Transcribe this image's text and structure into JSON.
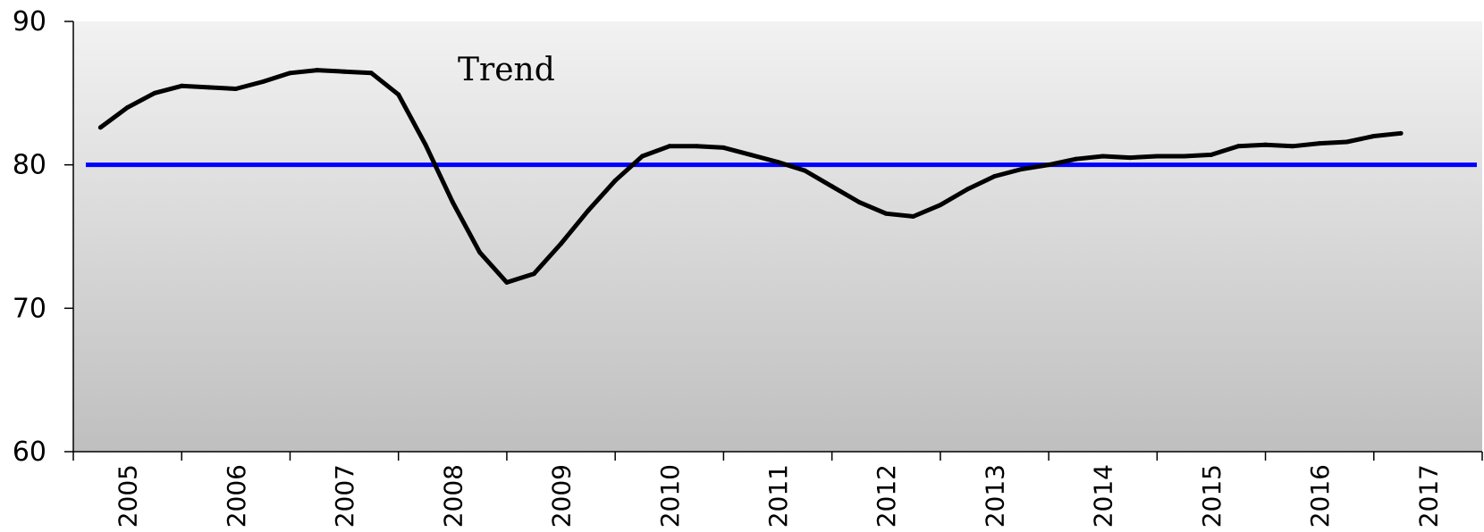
{
  "chart_data": {
    "type": "line",
    "title": "",
    "xlabel": "",
    "ylabel": "",
    "ylim": [
      60,
      90
    ],
    "yticks": [
      60,
      70,
      80,
      90
    ],
    "xticks": [
      "2005",
      "2006",
      "2007",
      "2008",
      "2009",
      "2010",
      "2011",
      "2012",
      "2013",
      "2014",
      "2015",
      "2016",
      "2017"
    ],
    "x_range": [
      2005,
      2018
    ],
    "grid": false,
    "legend": "none",
    "annotation": "Trend",
    "reference_line": {
      "y": 80,
      "color": "#0000ff"
    },
    "series": [
      {
        "color": "#000000",
        "x": [
          2005.25,
          2005.5,
          2005.75,
          2006.0,
          2006.25,
          2006.5,
          2006.75,
          2007.0,
          2007.25,
          2007.5,
          2007.75,
          2008.0,
          2008.25,
          2008.5,
          2008.75,
          2009.0,
          2009.25,
          2009.5,
          2009.75,
          2010.0,
          2010.25,
          2010.5,
          2010.75,
          2011.0,
          2011.25,
          2011.5,
          2011.75,
          2012.0,
          2012.25,
          2012.5,
          2012.75,
          2013.0,
          2013.25,
          2013.5,
          2013.75,
          2014.0,
          2014.25,
          2014.5,
          2014.75,
          2015.0,
          2015.25,
          2015.5,
          2015.75,
          2016.0,
          2016.25,
          2016.5,
          2016.75,
          2017.0,
          2017.25
        ],
        "values": [
          82.6,
          84.0,
          85.0,
          85.5,
          85.4,
          85.3,
          85.8,
          86.4,
          86.6,
          86.5,
          86.4,
          84.9,
          81.4,
          77.4,
          73.9,
          71.8,
          72.4,
          74.5,
          76.8,
          78.9,
          80.6,
          81.3,
          81.3,
          81.2,
          80.7,
          80.2,
          79.6,
          78.5,
          77.4,
          76.6,
          76.4,
          77.2,
          78.3,
          79.2,
          79.7,
          80.0,
          80.4,
          80.6,
          80.5,
          80.6,
          80.6,
          80.7,
          81.3,
          81.4,
          81.3,
          81.5,
          81.6,
          82.0,
          82.2
        ]
      }
    ]
  }
}
